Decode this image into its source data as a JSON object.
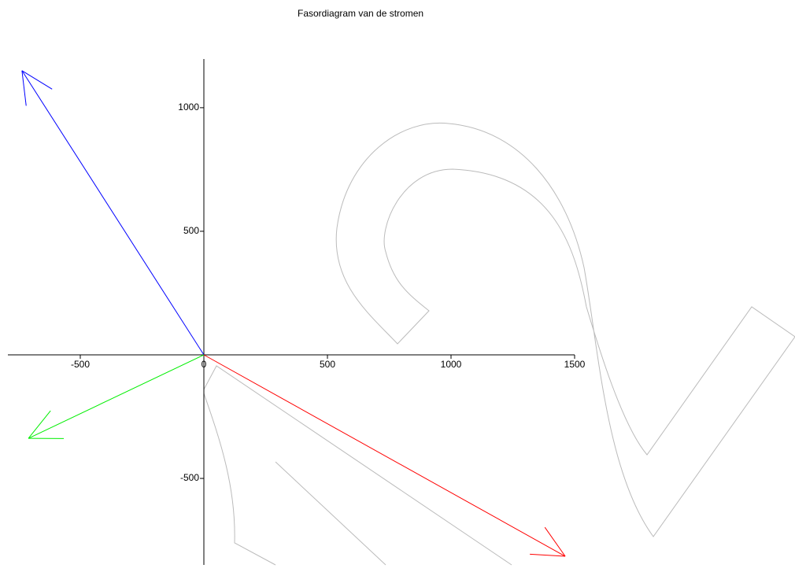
{
  "chart_data": {
    "type": "vector",
    "title": "Fasordiagram van de stromen",
    "vectors": [
      {
        "color": "#0000ff",
        "x": -736,
        "y": 1150
      },
      {
        "color": "#00ee00",
        "x": -710,
        "y": -338
      },
      {
        "color": "#ff0000",
        "x": 1462,
        "y": -815
      }
    ],
    "xlim": [
      -793,
      1500
    ],
    "ylim": [
      -850,
      1197
    ],
    "xticks": [
      -500,
      0,
      500,
      1000,
      1500
    ],
    "yticks": [
      -500,
      500,
      1000
    ]
  }
}
